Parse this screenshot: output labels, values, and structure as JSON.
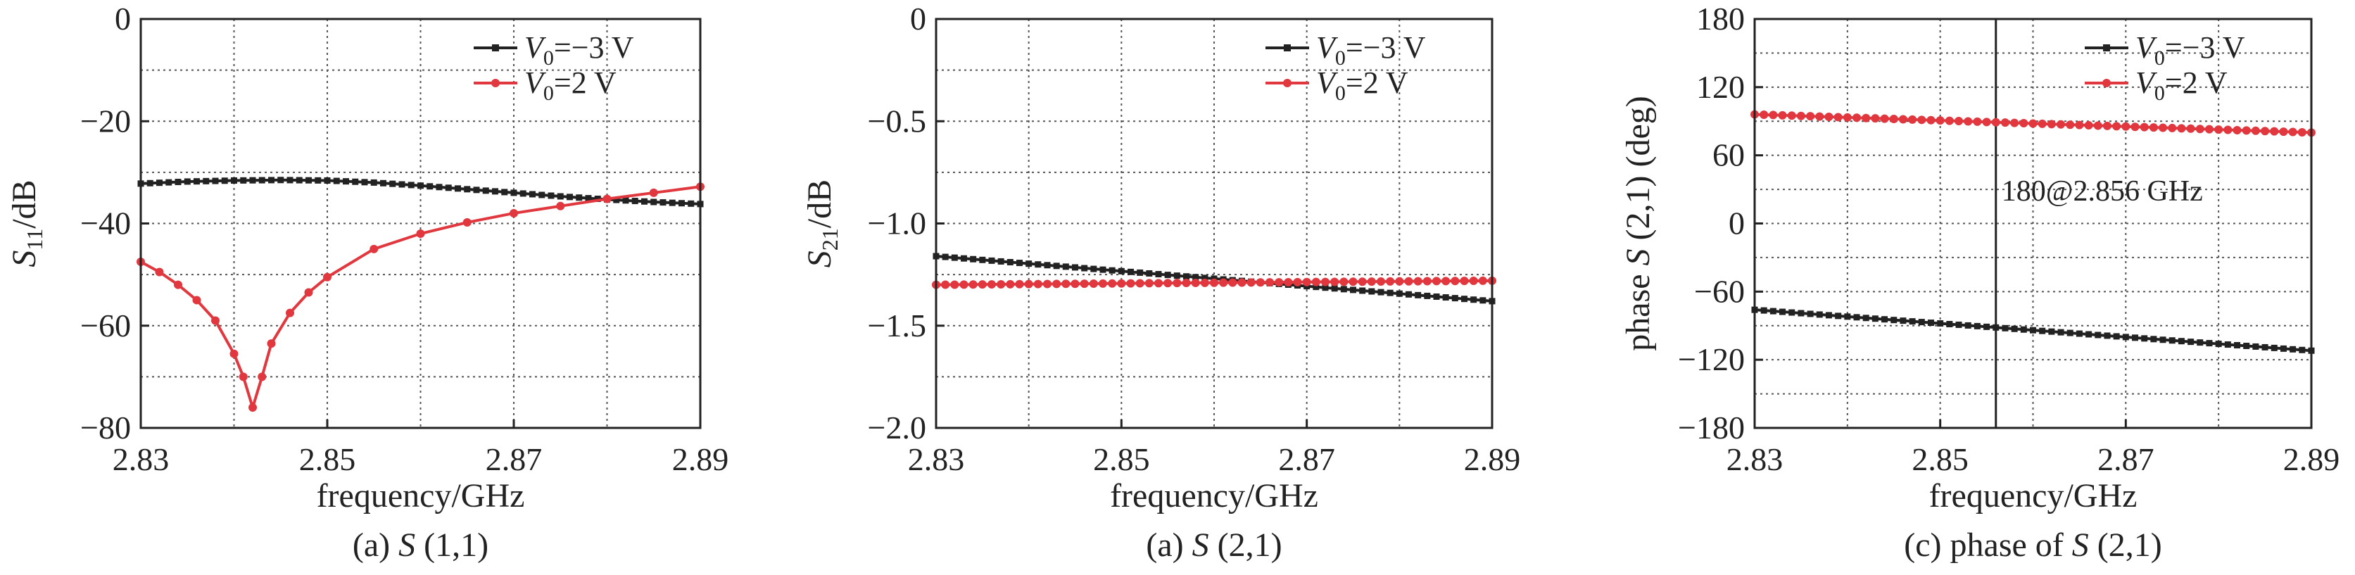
{
  "chart_data": [
    {
      "type": "line",
      "id": "s11",
      "caption_prefix": "(a) ",
      "caption_italic": "S",
      "caption_suffix": " (1,1)",
      "ylabel_main": "S",
      "ylabel_sub": "11",
      "ylabel_unit": "/dB",
      "xlabel": "frequency/GHz",
      "xlim": [
        2.83,
        2.89
      ],
      "ylim": [
        -80,
        0
      ],
      "xticks": [
        2.83,
        2.85,
        2.87,
        2.89
      ],
      "xtick_labels": [
        "2.83",
        "2.85",
        "2.87",
        "2.89"
      ],
      "yticks": [
        0,
        -20,
        -40,
        -60,
        -80
      ],
      "ytick_labels": [
        "0",
        "−20",
        "−40",
        "−60",
        "−80"
      ],
      "grid": true,
      "legend_position": "top-right",
      "series": [
        {
          "name_main": "V",
          "name_sub": "0",
          "name_suffix": "=−3 V",
          "color": "#222222",
          "marker": "square",
          "x": [
            2.83,
            2.835,
            2.84,
            2.845,
            2.85,
            2.855,
            2.86,
            2.865,
            2.87,
            2.875,
            2.88,
            2.885,
            2.89
          ],
          "y": [
            -32.2,
            -31.8,
            -31.6,
            -31.5,
            -31.6,
            -32.0,
            -32.6,
            -33.3,
            -34.0,
            -34.7,
            -35.3,
            -35.8,
            -36.2
          ]
        },
        {
          "name_main": "V",
          "name_sub": "0",
          "name_suffix": "=2 V",
          "color": "#e0383e",
          "marker": "circle",
          "x": [
            2.83,
            2.832,
            2.834,
            2.836,
            2.838,
            2.84,
            2.841,
            2.842,
            2.843,
            2.844,
            2.846,
            2.848,
            2.85,
            2.855,
            2.86,
            2.865,
            2.87,
            2.875,
            2.88,
            2.885,
            2.89
          ],
          "y": [
            -47.5,
            -49.5,
            -52.0,
            -55.0,
            -59.0,
            -65.5,
            -70.0,
            -76.0,
            -70.0,
            -63.5,
            -57.5,
            -53.5,
            -50.5,
            -45.0,
            -42.0,
            -39.8,
            -38.0,
            -36.6,
            -35.2,
            -34.0,
            -32.8
          ]
        }
      ]
    },
    {
      "type": "line",
      "id": "s21",
      "caption_prefix": "(a) ",
      "caption_italic": "S",
      "caption_suffix": " (2,1)",
      "ylabel_main": "S",
      "ylabel_sub": "21",
      "ylabel_unit": "/dB",
      "xlabel": "frequency/GHz",
      "xlim": [
        2.83,
        2.89
      ],
      "ylim": [
        -2.0,
        0
      ],
      "xticks": [
        2.83,
        2.85,
        2.87,
        2.89
      ],
      "xtick_labels": [
        "2.83",
        "2.85",
        "2.87",
        "2.89"
      ],
      "yticks": [
        0,
        -0.5,
        -1.0,
        -1.5,
        -2.0
      ],
      "ytick_labels": [
        "0",
        "−0.5",
        "−1.0",
        "−1.5",
        "−2.0"
      ],
      "grid": true,
      "legend_position": "top-right",
      "series": [
        {
          "name_main": "V",
          "name_sub": "0",
          "name_suffix": "=−3 V",
          "color": "#222222",
          "marker": "square",
          "x": [
            2.83,
            2.89
          ],
          "y": [
            -1.16,
            -1.38
          ]
        },
        {
          "name_main": "V",
          "name_sub": "0",
          "name_suffix": "=2 V",
          "color": "#e0383e",
          "marker": "circle",
          "x": [
            2.83,
            2.89
          ],
          "y": [
            -1.3,
            -1.28
          ]
        }
      ]
    },
    {
      "type": "line",
      "id": "phase",
      "caption_prefix": "(c) phase of ",
      "caption_italic": "S",
      "caption_suffix": " (2,1)",
      "ylabel_prefix": "phase ",
      "ylabel_main": "S",
      "ylabel_sub": "",
      "ylabel_unit": " (2,1) (deg)",
      "xlabel": "frequency/GHz",
      "xlim": [
        2.83,
        2.89
      ],
      "ylim": [
        -180,
        180
      ],
      "xticks": [
        2.83,
        2.85,
        2.87,
        2.89
      ],
      "xtick_labels": [
        "2.83",
        "2.85",
        "2.87",
        "2.89"
      ],
      "yticks": [
        180,
        120,
        60,
        0,
        -60,
        -120,
        -180
      ],
      "ytick_labels": [
        "180",
        "120",
        "60",
        "0",
        "−60",
        "−120",
        "−180"
      ],
      "grid": true,
      "legend_position": "top-right",
      "annotation": {
        "text": "180@2.856 GHz",
        "x": 2.856
      },
      "series": [
        {
          "name_main": "V",
          "name_sub": "0",
          "name_suffix": "=−3 V",
          "color": "#222222",
          "marker": "square",
          "x": [
            2.83,
            2.89
          ],
          "y": [
            -76,
            -112
          ]
        },
        {
          "name_main": "V",
          "name_sub": "0",
          "name_suffix": "=2 V",
          "color": "#e0383e",
          "marker": "circle",
          "x": [
            2.83,
            2.89
          ],
          "y": [
            96,
            80
          ]
        }
      ]
    }
  ]
}
